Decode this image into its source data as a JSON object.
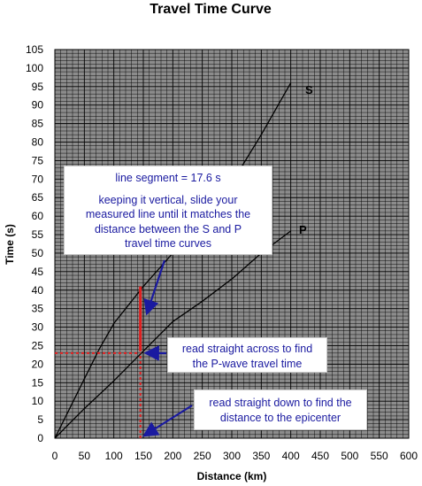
{
  "chart_data": {
    "type": "line",
    "title": "Travel Time Curve",
    "xlabel": "Distance (km)",
    "ylabel": "Time (s)",
    "xlim": [
      0,
      600
    ],
    "ylim": [
      0,
      105
    ],
    "xticks": [
      0,
      50,
      100,
      150,
      200,
      250,
      300,
      350,
      400,
      450,
      500,
      550,
      600
    ],
    "yticks": [
      0,
      5,
      10,
      15,
      20,
      25,
      30,
      35,
      40,
      45,
      50,
      55,
      60,
      65,
      70,
      75,
      80,
      85,
      90,
      95,
      100,
      105
    ],
    "grid": true,
    "series": [
      {
        "name": "S",
        "color": "#000000",
        "x": [
          0,
          25,
          50,
          75,
          100,
          150,
          200,
          250,
          300,
          350,
          400
        ],
        "y": [
          0,
          8,
          16,
          24,
          31,
          41,
          50,
          59,
          69,
          82,
          96
        ]
      },
      {
        "name": "P",
        "color": "#000000",
        "x": [
          0,
          50,
          100,
          150,
          200,
          250,
          300,
          350,
          400
        ],
        "y": [
          0,
          8,
          15.5,
          23.5,
          31.5,
          37,
          43,
          50,
          56
        ]
      }
    ],
    "annotations": {
      "measured_segment": {
        "x": 145,
        "y_from": 23.5,
        "y_to": 41,
        "color": "#e02020"
      },
      "horizontal_guide": {
        "y": 23,
        "x_from": 0,
        "x_to": 145,
        "color": "#e02020"
      },
      "vertical_guide": {
        "x": 145,
        "y_from": 0,
        "y_to": 23,
        "color": "#e02020"
      },
      "arrow_color": "#1a1aa0",
      "boxes": {
        "segment": {
          "title": "line segment = 17.6 s",
          "lines": [
            "keeping it vertical, slide your",
            "measured line until it matches the",
            "distance between the S and P",
            "travel time curves"
          ]
        },
        "across": {
          "lines": [
            "read straight across to find",
            "the P-wave travel time"
          ]
        },
        "down": {
          "lines": [
            "read straight down to find the",
            "distance to the epicenter"
          ]
        }
      }
    },
    "colors": {
      "plot_bg": "#8c8c8c",
      "grid": "#000000",
      "curve": "#000000"
    }
  }
}
